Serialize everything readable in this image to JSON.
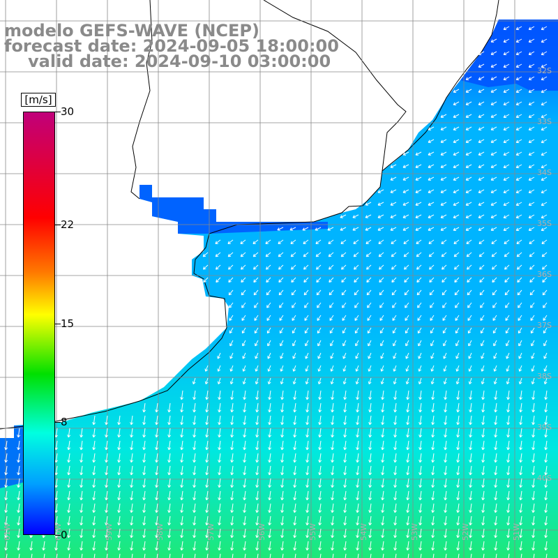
{
  "title": {
    "line1": "modelo GEFS-WAVE (NCEP)",
    "line2": "forecast date: 2024-09-05 18:00:00",
    "line3": "valid date: 2024-09-10 03:00:00"
  },
  "colorbar": {
    "unit": "[m/s]",
    "ticks": [
      "30",
      "22",
      "15",
      "8",
      "0"
    ],
    "tick_values": [
      30,
      22,
      15,
      8,
      0
    ],
    "colors": [
      "#0000ff",
      "#00a0ff",
      "#00ffe0",
      "#00e000",
      "#ffff00",
      "#ff7a00",
      "#ff0000",
      "#c0007a"
    ]
  },
  "lat_labels": [
    "32S",
    "33S",
    "34S",
    "35S",
    "36S",
    "37S",
    "38S",
    "39S",
    "40S"
  ],
  "lon_labels": [
    "61W",
    "60W",
    "59W",
    "58W",
    "57W",
    "56W",
    "55W",
    "54W",
    "53W",
    "52W",
    "51W",
    "50W"
  ],
  "map": {
    "land_color": "#ffffff",
    "coast_color": "#000000",
    "grid_color": "#888888",
    "label_color": "#b0b0b0",
    "arrow_color": "#ffffff",
    "field_colors": {
      "low": "#0055ff",
      "mid": "#00b4ff",
      "high": "#00e8e0",
      "peak": "#1ee878"
    }
  }
}
